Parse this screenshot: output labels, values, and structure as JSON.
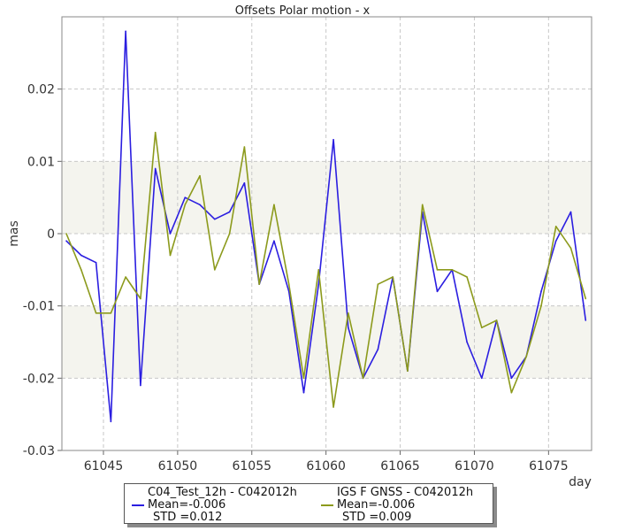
{
  "chart_data": {
    "type": "line",
    "title": "Offsets Polar motion - x",
    "xlabel": "day",
    "ylabel": "mas",
    "xlim": [
      61042.2,
      61077.9
    ],
    "ylim": [
      -0.03,
      0.03
    ],
    "xticks": [
      61045,
      61050,
      61055,
      61060,
      61065,
      61070,
      61075
    ],
    "yticks": [
      -0.03,
      -0.02,
      -0.01,
      0,
      0.01,
      0.02
    ],
    "ytick_labels": [
      "-0.03",
      "-0.02",
      "-0.01",
      "0",
      "0.01",
      "0.02"
    ],
    "band_ranges": [
      [
        0,
        0.01
      ],
      [
        -0.02,
        -0.01
      ]
    ],
    "grid": true,
    "legend_position": "bottom",
    "series": [
      {
        "name": "C04_Test_12h - C042012h",
        "color": "#2b1ee0",
        "mean_label": "Mean=-0.006",
        "std_label": "STD =0.012",
        "x": [
          61042.5,
          61043.5,
          61044.5,
          61045.5,
          61046.5,
          61047.5,
          61048.5,
          61049.5,
          61050.5,
          61051.5,
          61052.5,
          61053.5,
          61054.5,
          61055.5,
          61056.5,
          61057.5,
          61058.5,
          61059.5,
          61060.5,
          61061.5,
          61062.5,
          61063.5,
          61064.5,
          61065.5,
          61066.5,
          61067.5,
          61068.5,
          61069.5,
          61070.5,
          61071.5,
          61072.5,
          61073.5,
          61074.5,
          61075.5,
          61076.5,
          61077.5
        ],
        "values": [
          -0.001,
          -0.003,
          -0.004,
          -0.026,
          0.028,
          -0.021,
          0.009,
          0.0,
          0.005,
          0.004,
          0.002,
          0.003,
          0.007,
          -0.007,
          -0.001,
          -0.008,
          -0.022,
          -0.007,
          0.013,
          -0.013,
          -0.02,
          -0.016,
          -0.006,
          -0.019,
          0.003,
          -0.008,
          -0.005,
          -0.015,
          -0.02,
          -0.012,
          -0.02,
          -0.017,
          -0.008,
          -0.001,
          0.003,
          -0.012
        ]
      },
      {
        "name": "IGS F GNSS - C042012h",
        "color": "#8c9a1c",
        "mean_label": "Mean=-0.006",
        "std_label": "STD =0.009",
        "x": [
          61042.5,
          61043.5,
          61044.5,
          61045.5,
          61046.5,
          61047.5,
          61048.5,
          61049.5,
          61050.5,
          61051.5,
          61052.5,
          61053.5,
          61054.5,
          61055.5,
          61056.5,
          61057.5,
          61058.5,
          61059.5,
          61060.5,
          61061.5,
          61062.5,
          61063.5,
          61064.5,
          61065.5,
          61066.5,
          61067.5,
          61068.5,
          61069.5,
          61070.5,
          61071.5,
          61072.5,
          61073.5,
          61074.5,
          61075.5,
          61076.5,
          61077.5
        ],
        "values": [
          0.0,
          -0.005,
          -0.011,
          -0.011,
          -0.006,
          -0.009,
          0.014,
          -0.003,
          0.004,
          0.008,
          -0.005,
          0.0,
          0.012,
          -0.007,
          0.004,
          -0.007,
          -0.02,
          -0.005,
          -0.024,
          -0.011,
          -0.02,
          -0.007,
          -0.006,
          -0.019,
          0.004,
          -0.005,
          -0.005,
          -0.006,
          -0.013,
          -0.012,
          -0.022,
          -0.017,
          -0.01,
          0.001,
          -0.002,
          -0.009
        ]
      }
    ]
  }
}
